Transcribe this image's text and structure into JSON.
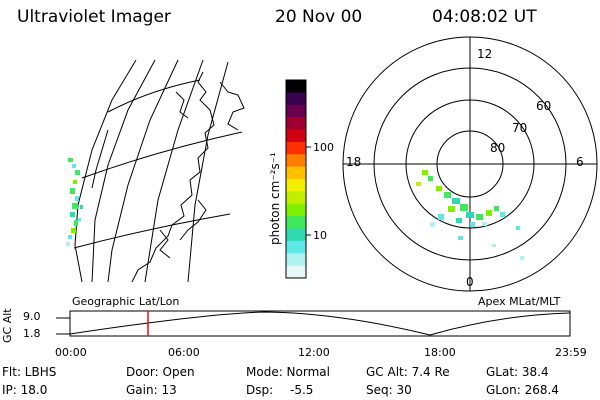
{
  "header": {
    "title": "Ultraviolet Imager",
    "date": "20 Nov 00",
    "time": "04:08:02 UT"
  },
  "colorbar": {
    "unit_label": "photon cm⁻²s⁻¹",
    "tick_100": "100",
    "tick_10": "10",
    "colors": [
      "#000000",
      "#3a0050",
      "#6a0050",
      "#a00030",
      "#d00010",
      "#ff3000",
      "#ff8000",
      "#ffc000",
      "#f0f000",
      "#c0f000",
      "#80f000",
      "#40e860",
      "#30d8b0",
      "#60e8e8",
      "#b0f0f0",
      "#e8f8f8"
    ]
  },
  "map": {
    "caption": "Geographic Lat/Lon"
  },
  "polar": {
    "caption": "Apex MLat/MLT",
    "mlt_labels": {
      "top": "12",
      "left": "18",
      "right": "6",
      "bottom": "0"
    },
    "lat_labels": [
      "60",
      "70",
      "80"
    ]
  },
  "altitude_plot": {
    "ylabel": "GC Alt",
    "ytick_top": "9.0",
    "ytick_bottom": "1.8",
    "xticks": [
      "00:00",
      "06:00",
      "12:00",
      "18:00",
      "23:59"
    ],
    "current_time_marker_color": "#e00000"
  },
  "info": {
    "flt": "Flt: LBHS",
    "ip": "IP: 18.0",
    "door": "Door: Open",
    "gain": "Gain: 13",
    "mode": "Mode: Normal",
    "dsp_label": "Dsp:",
    "dsp_value": "-5.5",
    "gc_alt": "GC Alt: 7.4 Re",
    "seq": "Seq: 30",
    "glat": "GLat: 38.4",
    "glon": "GLon: 268.4"
  }
}
